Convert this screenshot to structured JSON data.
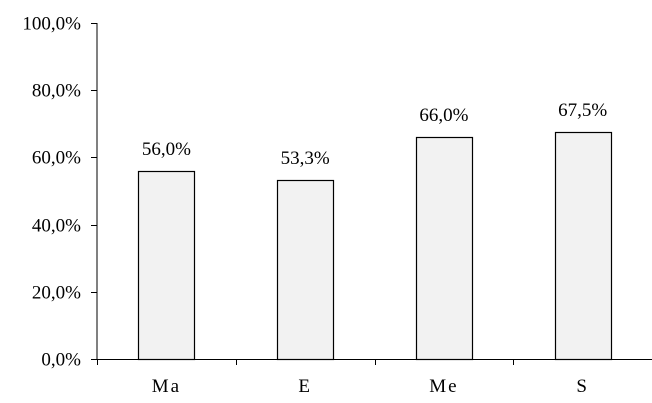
{
  "chart_data": {
    "type": "bar",
    "title": "",
    "xlabel": "",
    "ylabel": "",
    "categories": [
      "Ma",
      "E",
      "Me",
      "S"
    ],
    "values": [
      56.0,
      53.3,
      66.0,
      67.5
    ],
    "data_labels": [
      "56,0%",
      "53,3%",
      "66,0%",
      "67,5%"
    ],
    "ylim": [
      0,
      100
    ],
    "y_ticks": [
      0,
      20,
      40,
      60,
      80,
      100
    ],
    "y_tick_labels": [
      "0,0%",
      "20,0%",
      "40,0%",
      "60,0%",
      "80,0%",
      "100,0%"
    ],
    "grid": false,
    "legend": "none",
    "bar_fill": "#f2f2f2",
    "bar_stroke": "#000000"
  }
}
